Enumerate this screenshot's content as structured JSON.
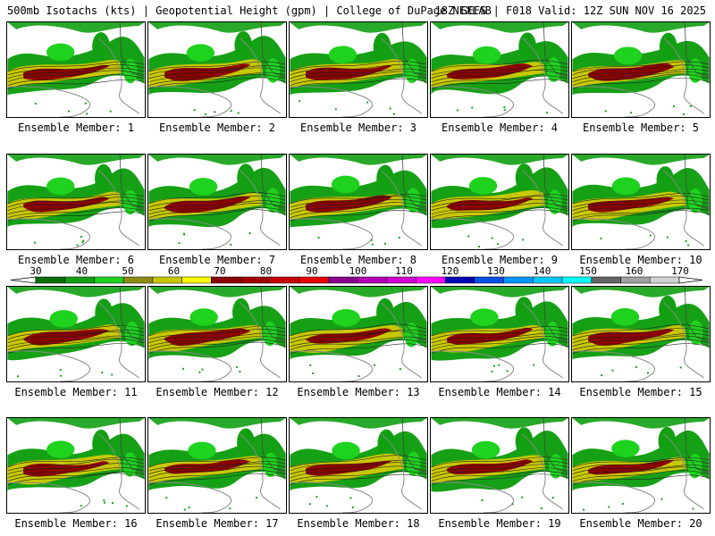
{
  "header": {
    "left": "500mb Isotachs (kts) | Geopotential Height (gpm) | College of DuPage NEXLAB",
    "right": "18Z GEFS | F018 Valid: 12Z SUN NOV 16 2025"
  },
  "panels": [
    {
      "label": "Ensemble Member: 1"
    },
    {
      "label": "Ensemble Member: 2"
    },
    {
      "label": "Ensemble Member: 3"
    },
    {
      "label": "Ensemble Member: 4"
    },
    {
      "label": "Ensemble Member: 5"
    },
    {
      "label": "Ensemble Member: 6"
    },
    {
      "label": "Ensemble Member: 7"
    },
    {
      "label": "Ensemble Member: 8"
    },
    {
      "label": "Ensemble Member: 9"
    },
    {
      "label": "Ensemble Member: 10"
    },
    {
      "label": "Ensemble Member: 11"
    },
    {
      "label": "Ensemble Member: 12"
    },
    {
      "label": "Ensemble Member: 13"
    },
    {
      "label": "Ensemble Member: 14"
    },
    {
      "label": "Ensemble Member: 15"
    },
    {
      "label": "Ensemble Member: 16"
    },
    {
      "label": "Ensemble Member: 17"
    },
    {
      "label": "Ensemble Member: 18"
    },
    {
      "label": "Ensemble Member: 19"
    },
    {
      "label": "Ensemble Member: 20"
    }
  ],
  "colorbar": {
    "ticks": [
      "30",
      "40",
      "50",
      "60",
      "70",
      "80",
      "90",
      "100",
      "110",
      "120",
      "130",
      "140",
      "150",
      "160",
      "170"
    ],
    "colors": [
      "#0a6e0a",
      "#12a012",
      "#1ed21e",
      "#8c8c14",
      "#c8c800",
      "#ffff00",
      "#8b0000",
      "#a00000",
      "#c80000",
      "#e60000",
      "#8b008b",
      "#b400b4",
      "#d200d2",
      "#ff00ff",
      "#0000b4",
      "#0050e6",
      "#0096ff",
      "#00c8ff",
      "#00ffff",
      "#646464",
      "#a0a0a0",
      "#d2d2d2"
    ]
  }
}
